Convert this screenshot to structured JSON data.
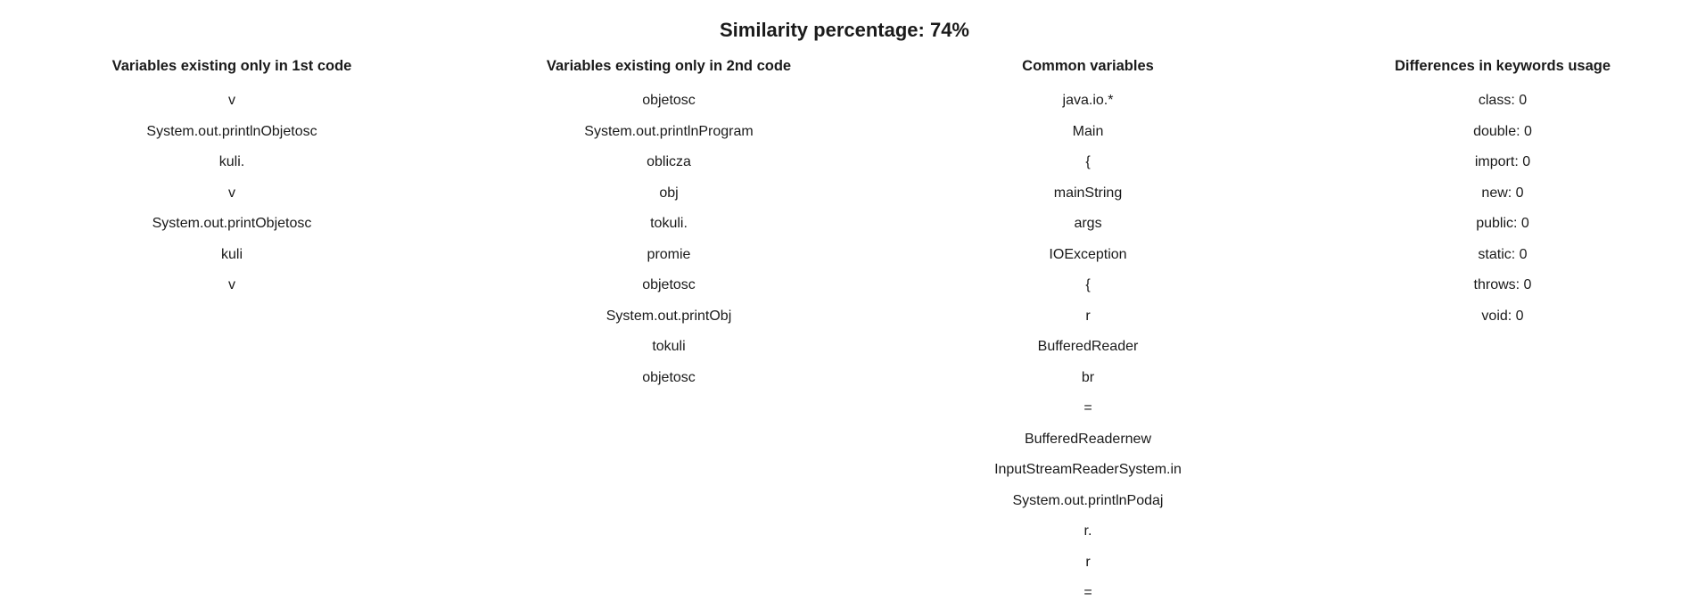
{
  "title": "Similarity percentage: 74%",
  "columns": [
    {
      "header": "Variables existing only in 1st code",
      "items": [
        "v",
        "System.out.printlnObjetosc",
        "kuli.",
        "v",
        "System.out.printObjetosc",
        "kuli",
        "v"
      ]
    },
    {
      "header": "Variables existing only in 2nd code",
      "items": [
        "objetosc",
        "System.out.printlnProgram",
        "oblicza",
        "obj",
        "tokuli.",
        "promie",
        "objetosc",
        "System.out.printObj",
        "tokuli",
        "objetosc"
      ]
    },
    {
      "header": "Common variables",
      "items": [
        "java.io.*",
        "Main",
        "{",
        "mainString",
        "args",
        "IOException",
        "{",
        "r",
        "BufferedReader",
        "br",
        "=",
        "BufferedReadernew",
        "InputStreamReaderSystem.in",
        "System.out.printlnPodaj",
        "r.",
        "r",
        "="
      ]
    },
    {
      "header": "Differences in keywords usage",
      "items": [
        "class: 0",
        "double: 0",
        "import: 0",
        "new: 0",
        "public: 0",
        "static: 0",
        "throws: 0",
        "void: 0"
      ]
    }
  ]
}
